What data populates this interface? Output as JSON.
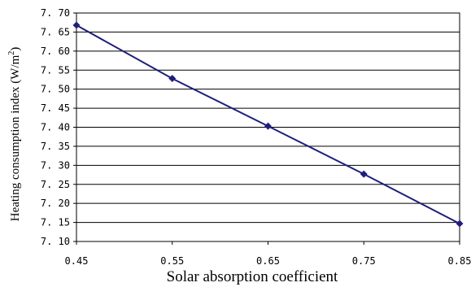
{
  "chart_data": {
    "type": "line",
    "title": "",
    "xlabel": "Solar absorption coefficient",
    "ylabel": "Heating consumption index (W/m",
    "ylabel_superscript": "2",
    "ylabel_close": ")",
    "xlim": [
      0.45,
      0.85
    ],
    "ylim": [
      7.1,
      7.7
    ],
    "x_ticks": [
      "0.45",
      "0.55",
      "0.65",
      "0.75",
      "0.85"
    ],
    "y_ticks": [
      "7.70",
      "7.65",
      "7.60",
      "7.55",
      "7.50",
      "7.45",
      "7.40",
      "7.35",
      "7.30",
      "7.25",
      "7.20",
      "7.15",
      "7.10"
    ],
    "grid": "horizontal",
    "legend": "none",
    "series": [
      {
        "x": [
          0.45,
          0.55,
          0.65,
          0.75,
          0.85
        ],
        "y": [
          7.668,
          7.528,
          7.403,
          7.277,
          7.147
        ],
        "color": "#1f1f7a",
        "marker": "diamond"
      }
    ]
  }
}
